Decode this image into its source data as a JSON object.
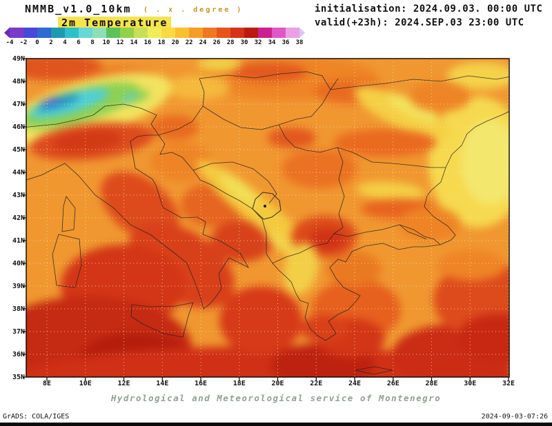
{
  "header": {
    "model_title": "NMMB_v1.0_10km",
    "model_subtitle": "( . x . degree )",
    "field_title": "2m Temperature",
    "init_line": "initialisation: 2024.09.03. 00:00 UTC",
    "valid_line": "valid(+23h): 2024.SEP.03 23:00 UTC"
  },
  "colorbar": {
    "units": "degree",
    "tick_labels": [
      "-4",
      "-2",
      "0",
      "2",
      "4",
      "6",
      "8",
      "10",
      "12",
      "14",
      "16",
      "18",
      "20",
      "22",
      "24",
      "26",
      "28",
      "30",
      "32",
      "34",
      "36",
      "38"
    ],
    "arrow_left_color": "#6a28b0",
    "cell_colors": [
      "#7a3cc8",
      "#4848d8",
      "#2e6ad0",
      "#1e9ab0",
      "#2cc0cc",
      "#66d8d8",
      "#8ce0b4",
      "#5cc25c",
      "#92d24a",
      "#c8e055",
      "#f0ee58",
      "#fada3e",
      "#fcc02e",
      "#f89c28",
      "#f07820",
      "#e65418",
      "#d63218",
      "#bc1a10",
      "#cc2090",
      "#e058c8",
      "#eba0e6"
    ],
    "arrow_right_color": "#d9c4f2"
  },
  "map": {
    "lat_labels": [
      "49N",
      "48N",
      "47N",
      "46N",
      "45N",
      "44N",
      "43N",
      "42N",
      "41N",
      "40N",
      "39N",
      "38N",
      "37N",
      "36N",
      "35N"
    ],
    "lon_labels": [
      "8E",
      "10E",
      "12E",
      "14E",
      "16E",
      "18E",
      "20E",
      "22E",
      "24E",
      "26E",
      "28E",
      "30E",
      "32E"
    ]
  },
  "footer": {
    "service_line": "Hydrological and Meteorological service of Montenegro",
    "grads_credit": "GrADS: COLA/IGES",
    "timestamp": "2024-09-03-07:26"
  },
  "chart_data": {
    "type": "heatmap",
    "title": "2m Temperature",
    "units": "degree",
    "levels": [
      -4,
      -2,
      0,
      2,
      4,
      6,
      8,
      10,
      12,
      14,
      16,
      18,
      20,
      22,
      24,
      26,
      28,
      30,
      32,
      34,
      36,
      38
    ],
    "x_ticks": [
      "8E",
      "10E",
      "12E",
      "14E",
      "16E",
      "18E",
      "20E",
      "22E",
      "24E",
      "26E",
      "28E",
      "30E",
      "32E"
    ],
    "y_ticks": [
      "49N",
      "48N",
      "47N",
      "46N",
      "45N",
      "44N",
      "43N",
      "42N",
      "41N",
      "40N",
      "39N",
      "38N",
      "37N",
      "36N",
      "35N"
    ],
    "legend_position": "top",
    "grid": true,
    "notes": "Filled contour temperature field over Balkans/Italy: coldest band (cyan/green, 2-10) along the Alps; yellow (16-20) over Carpathians, Dinaric ridge, Pindus and Black Sea; orange (22-26) over plains; red (26-32) over Italy, Tyrrhenian and southern Mediterranean"
  }
}
